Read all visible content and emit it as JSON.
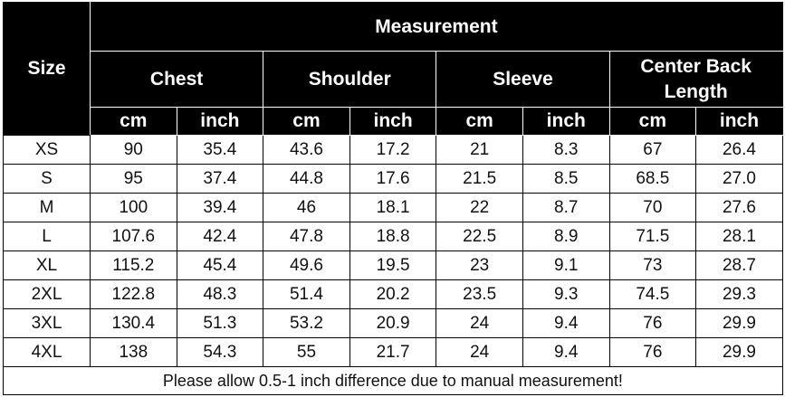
{
  "table": {
    "size_label": "Size",
    "measurement_label": "Measurement",
    "groups": [
      "Chest",
      "Shoulder",
      "Sleeve",
      "Center Back Length"
    ],
    "units": [
      "cm",
      "inch",
      "cm",
      "inch",
      "cm",
      "inch",
      "cm",
      "inch"
    ],
    "rows": [
      [
        "XS",
        "90",
        "35.4",
        "43.6",
        "17.2",
        "21",
        "8.3",
        "67",
        "26.4"
      ],
      [
        "S",
        "95",
        "37.4",
        "44.8",
        "17.6",
        "21.5",
        "8.5",
        "68.5",
        "27.0"
      ],
      [
        "M",
        "100",
        "39.4",
        "46",
        "18.1",
        "22",
        "8.7",
        "70",
        "27.6"
      ],
      [
        "L",
        "107.6",
        "42.4",
        "47.8",
        "18.8",
        "22.5",
        "8.9",
        "71.5",
        "28.1"
      ],
      [
        "XL",
        "115.2",
        "45.4",
        "49.6",
        "19.5",
        "23",
        "9.1",
        "73",
        "28.7"
      ],
      [
        "2XL",
        "122.8",
        "48.3",
        "51.4",
        "20.2",
        "23.5",
        "9.3",
        "74.5",
        "29.3"
      ],
      [
        "3XL",
        "130.4",
        "51.3",
        "53.2",
        "20.9",
        "24",
        "9.4",
        "76",
        "29.9"
      ],
      [
        "4XL",
        "138",
        "54.3",
        "55",
        "21.7",
        "24",
        "9.4",
        "76",
        "29.9"
      ]
    ],
    "note": "Please allow 0.5-1 inch difference due to manual measurement!"
  }
}
